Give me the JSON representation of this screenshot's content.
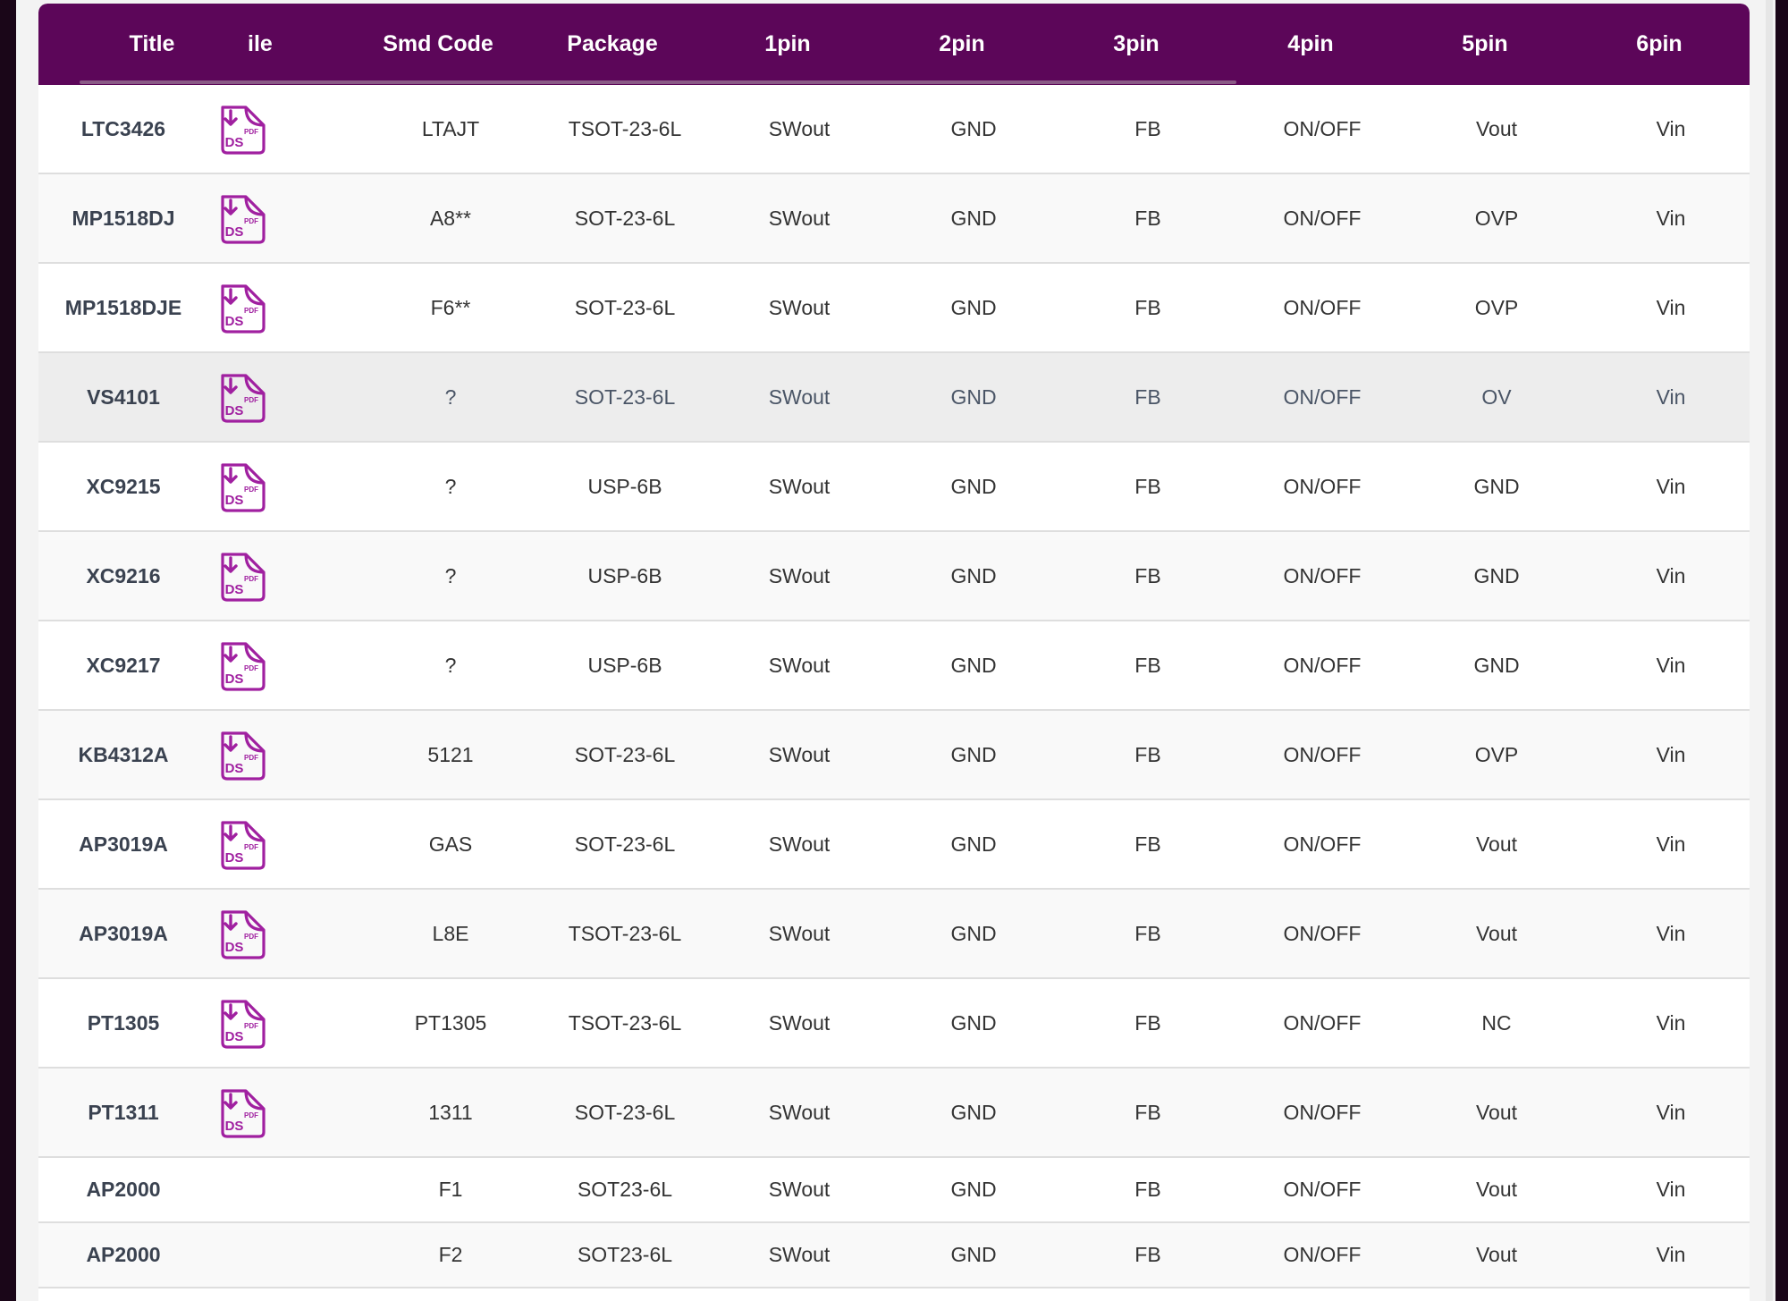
{
  "table": {
    "headers": [
      "Title",
      "File",
      "Smd Code",
      "Package",
      "1pin",
      "2pin",
      "3pin",
      "4pin",
      "5pin",
      "6pin"
    ],
    "header_file_visible": "ile",
    "file_icon": {
      "name": "pdf-download-icon",
      "label_big": "DS",
      "label_small": "PDF",
      "color": "#a020a0"
    },
    "rows": [
      {
        "title": "LTC3426",
        "file": true,
        "smd": "LTAJT",
        "package": "TSOT-23-6L",
        "p1": "SWout",
        "p2": "GND",
        "p3": "FB",
        "p4": "ON/OFF",
        "p5": "Vout",
        "p6": "Vin"
      },
      {
        "title": "MP1518DJ",
        "file": true,
        "smd": "A8**",
        "package": "SOT-23-6L",
        "p1": "SWout",
        "p2": "GND",
        "p3": "FB",
        "p4": "ON/OFF",
        "p5": "OVP",
        "p6": "Vin"
      },
      {
        "title": "MP1518DJE",
        "file": true,
        "smd": "F6**",
        "package": "SOT-23-6L",
        "p1": "SWout",
        "p2": "GND",
        "p3": "FB",
        "p4": "ON/OFF",
        "p5": "OVP",
        "p6": "Vin"
      },
      {
        "title": "VS4101",
        "file": true,
        "smd": "?",
        "package": "SOT-23-6L",
        "p1": "SWout",
        "p2": "GND",
        "p3": "FB",
        "p4": "ON/OFF",
        "p5": "OV",
        "p6": "Vin"
      },
      {
        "title": "XC9215",
        "file": true,
        "smd": "?",
        "package": "USP-6B",
        "p1": "SWout",
        "p2": "GND",
        "p3": "FB",
        "p4": "ON/OFF",
        "p5": "GND",
        "p6": "Vin"
      },
      {
        "title": "XC9216",
        "file": true,
        "smd": "?",
        "package": "USP-6B",
        "p1": "SWout",
        "p2": "GND",
        "p3": "FB",
        "p4": "ON/OFF",
        "p5": "GND",
        "p6": "Vin"
      },
      {
        "title": "XC9217",
        "file": true,
        "smd": "?",
        "package": "USP-6B",
        "p1": "SWout",
        "p2": "GND",
        "p3": "FB",
        "p4": "ON/OFF",
        "p5": "GND",
        "p6": "Vin"
      },
      {
        "title": "KB4312A",
        "file": true,
        "smd": "5121",
        "package": "SOT-23-6L",
        "p1": "SWout",
        "p2": "GND",
        "p3": "FB",
        "p4": "ON/OFF",
        "p5": "OVP",
        "p6": "Vin"
      },
      {
        "title": "AP3019A",
        "file": true,
        "smd": "GAS",
        "package": "SOT-23-6L",
        "p1": "SWout",
        "p2": "GND",
        "p3": "FB",
        "p4": "ON/OFF",
        "p5": "Vout",
        "p6": "Vin"
      },
      {
        "title": "AP3019A",
        "file": true,
        "smd": "L8E",
        "package": "TSOT-23-6L",
        "p1": "SWout",
        "p2": "GND",
        "p3": "FB",
        "p4": "ON/OFF",
        "p5": "Vout",
        "p6": "Vin"
      },
      {
        "title": "PT1305",
        "file": true,
        "smd": "PT1305",
        "package": "TSOT-23-6L",
        "p1": "SWout",
        "p2": "GND",
        "p3": "FB",
        "p4": "ON/OFF",
        "p5": "NC",
        "p6": "Vin"
      },
      {
        "title": "PT1311",
        "file": true,
        "smd": "1311",
        "package": "SOT-23-6L",
        "p1": "SWout",
        "p2": "GND",
        "p3": "FB",
        "p4": "ON/OFF",
        "p5": "Vout",
        "p6": "Vin"
      },
      {
        "title": "AP2000",
        "file": false,
        "smd": "F1",
        "package": "SOT23-6L",
        "p1": "SWout",
        "p2": "GND",
        "p3": "FB",
        "p4": "ON/OFF",
        "p5": "Vout",
        "p6": "Vin"
      },
      {
        "title": "AP2000",
        "file": false,
        "smd": "F2",
        "package": "SOT23-6L",
        "p1": "SWout",
        "p2": "GND",
        "p3": "FB",
        "p4": "ON/OFF",
        "p5": "Vout",
        "p6": "Vin"
      }
    ]
  },
  "colors": {
    "header_bg": "#5c0659",
    "icon": "#a020a0",
    "hover_row": "#ededed"
  }
}
